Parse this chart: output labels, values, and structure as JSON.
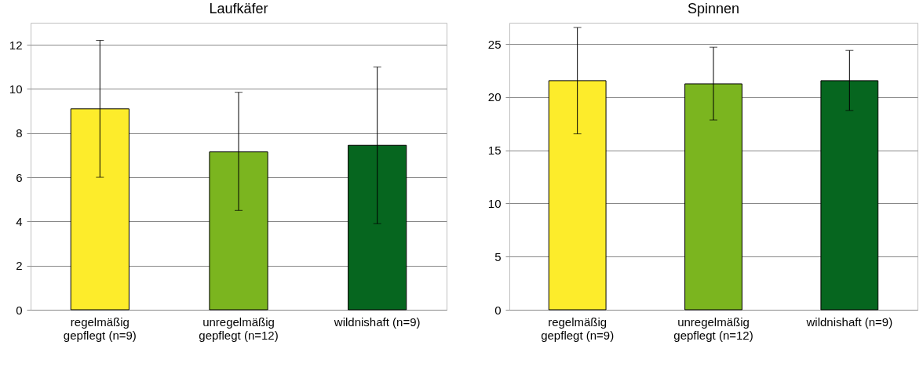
{
  "chart_data": [
    {
      "type": "bar",
      "title": "Laufkäfer",
      "categories": [
        "regelmäßig gepflegt (n=9)",
        "unregelmäßig gepflegt (n=12)",
        "wildnishaft (n=9)"
      ],
      "values": [
        9.1,
        7.15,
        7.45
      ],
      "colors": [
        "#fdec2b",
        "#7bb51f",
        "#06661f"
      ],
      "errors": [
        [
          6.0,
          12.2
        ],
        [
          4.5,
          9.85
        ],
        [
          3.9,
          11.0
        ]
      ],
      "ylim": [
        0,
        13
      ],
      "yticks": [
        0,
        2,
        4,
        6,
        8,
        10,
        12
      ],
      "grid": "y"
    },
    {
      "type": "bar",
      "title": "Spinnen",
      "categories": [
        "regelmäßig gepflegt (n=9)",
        "unregelmäßig gepflegt (n=12)",
        "wildnishaft (n=9)"
      ],
      "values": [
        21.55,
        21.25,
        21.55
      ],
      "colors": [
        "#fdec2b",
        "#7bb51f",
        "#06661f"
      ],
      "errors": [
        [
          16.55,
          26.55
        ],
        [
          17.85,
          24.7
        ],
        [
          18.75,
          24.4
        ]
      ],
      "ylim": [
        0,
        27
      ],
      "yticks": [
        0,
        5,
        10,
        15,
        20,
        25
      ],
      "grid": "y"
    }
  ]
}
